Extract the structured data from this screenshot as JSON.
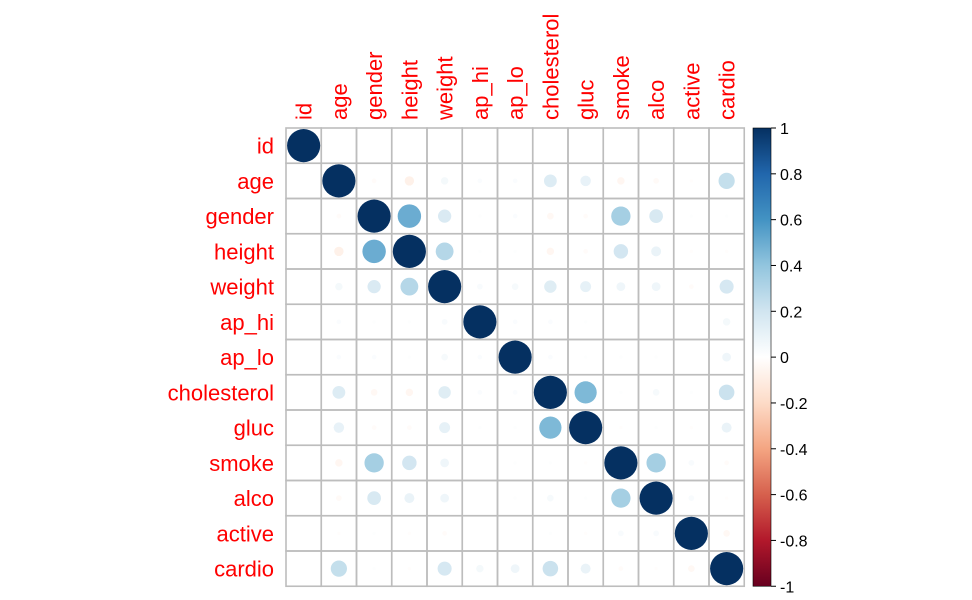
{
  "chart_data": {
    "type": "heatmap",
    "variables": [
      "id",
      "age",
      "gender",
      "height",
      "weight",
      "ap_hi",
      "ap_lo",
      "cholesterol",
      "gluc",
      "smoke",
      "alco",
      "active",
      "cardio"
    ],
    "matrix": [
      [
        1,
        0,
        0,
        0,
        0,
        0,
        0,
        0,
        0,
        0,
        0,
        0,
        0
      ],
      [
        0,
        1,
        -0.02,
        -0.08,
        0.05,
        0.02,
        0.02,
        0.15,
        0.1,
        -0.05,
        -0.03,
        -0.01,
        0.24
      ],
      [
        0,
        -0.02,
        1,
        0.5,
        0.16,
        0.01,
        0.02,
        -0.04,
        -0.02,
        0.34,
        0.17,
        0.01,
        0.01
      ],
      [
        0,
        -0.08,
        0.5,
        1,
        0.29,
        0.01,
        0.01,
        -0.05,
        -0.02,
        0.19,
        0.09,
        -0.01,
        -0.01
      ],
      [
        0,
        0.05,
        0.16,
        0.29,
        1,
        0.03,
        0.04,
        0.14,
        0.11,
        0.07,
        0.07,
        -0.02,
        0.18
      ],
      [
        0,
        0.02,
        0.01,
        0.01,
        0.03,
        1,
        0.02,
        0.02,
        0.01,
        0,
        0,
        0,
        0.05
      ],
      [
        0,
        0.02,
        0.02,
        0.01,
        0.04,
        0.02,
        1,
        0.02,
        0.01,
        0.01,
        0.01,
        0,
        0.07
      ],
      [
        0,
        0.15,
        -0.04,
        -0.05,
        0.14,
        0.02,
        0.02,
        1,
        0.45,
        0.01,
        0.04,
        0.01,
        0.22
      ],
      [
        0,
        0.1,
        -0.02,
        -0.02,
        0.11,
        0.01,
        0.01,
        0.45,
        1,
        -0.01,
        0.01,
        -0.01,
        0.09
      ],
      [
        0,
        -0.05,
        0.34,
        0.19,
        0.07,
        0,
        0.01,
        0.01,
        -0.01,
        1,
        0.34,
        0.03,
        -0.02
      ],
      [
        0,
        -0.03,
        0.17,
        0.09,
        0.07,
        0,
        0.01,
        0.04,
        0.01,
        0.34,
        1,
        0.03,
        -0.01
      ],
      [
        0,
        -0.01,
        0.01,
        -0.01,
        -0.02,
        0,
        0,
        0.01,
        -0.01,
        0.03,
        0.03,
        1,
        -0.04
      ],
      [
        0,
        0.24,
        0.01,
        -0.01,
        0.18,
        0.05,
        0.07,
        0.22,
        0.09,
        -0.02,
        -0.01,
        -0.04,
        1
      ]
    ],
    "colorbar": {
      "range": [
        -1,
        1
      ],
      "ticks": [
        "1",
        "0.8",
        "0.6",
        "0.4",
        "0.2",
        "0",
        "-0.2",
        "-0.4",
        "-0.6",
        "-0.8",
        "-1"
      ],
      "stops": [
        "#67001f",
        "#b2182b",
        "#d6604d",
        "#f4a582",
        "#fddbc7",
        "#ffffff",
        "#d1e5f0",
        "#92c5de",
        "#4393c3",
        "#2166ac",
        "#053061"
      ]
    },
    "label_color": "#ff0000",
    "grid": true,
    "legend_placement": "right"
  }
}
